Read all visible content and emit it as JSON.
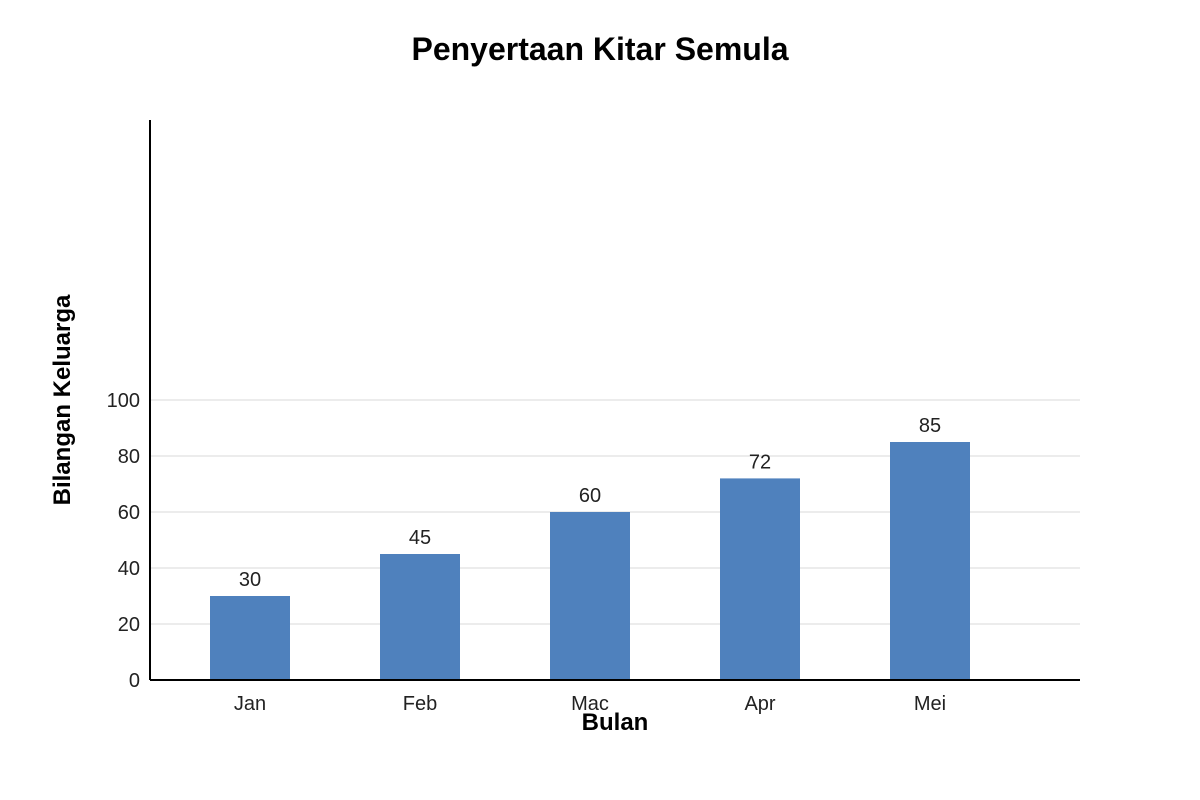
{
  "chart_data": {
    "type": "bar",
    "title": "Penyertaan Kitar Semula",
    "xlabel": "Bulan",
    "ylabel": "Bilangan Keluarga",
    "categories": [
      "Jan",
      "Feb",
      "Mac",
      "Apr",
      "Mei"
    ],
    "values": [
      30,
      45,
      60,
      72,
      85
    ],
    "data_labels": [
      "30",
      "45",
      "60",
      "72",
      "85"
    ],
    "y_ticks": [
      "0",
      "20",
      "40",
      "60",
      "80",
      "100"
    ],
    "ylim": [
      0,
      100
    ],
    "grid": true,
    "legend": "none",
    "colors": {
      "bar": "#4f81bd"
    }
  }
}
